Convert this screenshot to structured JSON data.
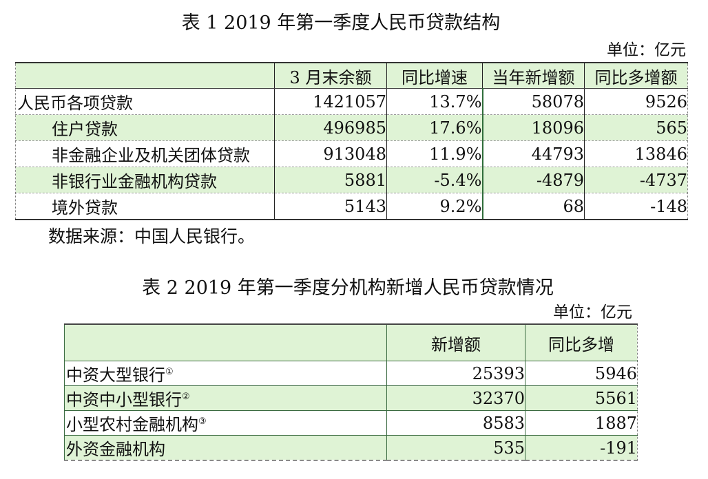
{
  "table1": {
    "title": "表 1 2019 年第一季度人民币贷款结构",
    "unit": "单位：亿元",
    "headers": [
      "",
      "3 月末余额",
      "同比增速",
      "当年新增额",
      "同比多增额"
    ],
    "rows": [
      {
        "name": "人民币各项贷款",
        "values": [
          "1421057",
          "13.7%",
          "58078",
          "9526"
        ]
      },
      {
        "name": "住户贷款",
        "values": [
          "496985",
          "17.6%",
          "18096",
          "565"
        ]
      },
      {
        "name": "非金融企业及机关团体贷款",
        "values": [
          "913048",
          "11.9%",
          "44793",
          "13846"
        ]
      },
      {
        "name": "非银行业金融机构贷款",
        "values": [
          "5881",
          "-5.4%",
          "-4879",
          "-4737"
        ]
      },
      {
        "name": "境外贷款",
        "values": [
          "5143",
          "9.2%",
          "68",
          "-148"
        ]
      }
    ],
    "source": "数据来源：中国人民银行。"
  },
  "table2": {
    "title": "表 2 2019 年第一季度分机构新增人民币贷款情况",
    "unit": "单位：亿元",
    "headers": [
      "",
      "新增额",
      "同比多增"
    ],
    "rows": [
      {
        "name": "中资大型银行",
        "note": "①",
        "values": [
          "25393",
          "5946"
        ]
      },
      {
        "name": "中资中小型银行",
        "note": "②",
        "values": [
          "32370",
          "5561"
        ]
      },
      {
        "name": "小型农村金融机构",
        "note": "③",
        "values": [
          "8583",
          "1887"
        ]
      },
      {
        "name": "外资金融机构",
        "note": "",
        "values": [
          "535",
          "-191"
        ]
      }
    ]
  },
  "colors": {
    "header_fill": "#dff3d5",
    "row_alt_fill": "#dff3d5",
    "border_green": "#2f6d3a"
  }
}
